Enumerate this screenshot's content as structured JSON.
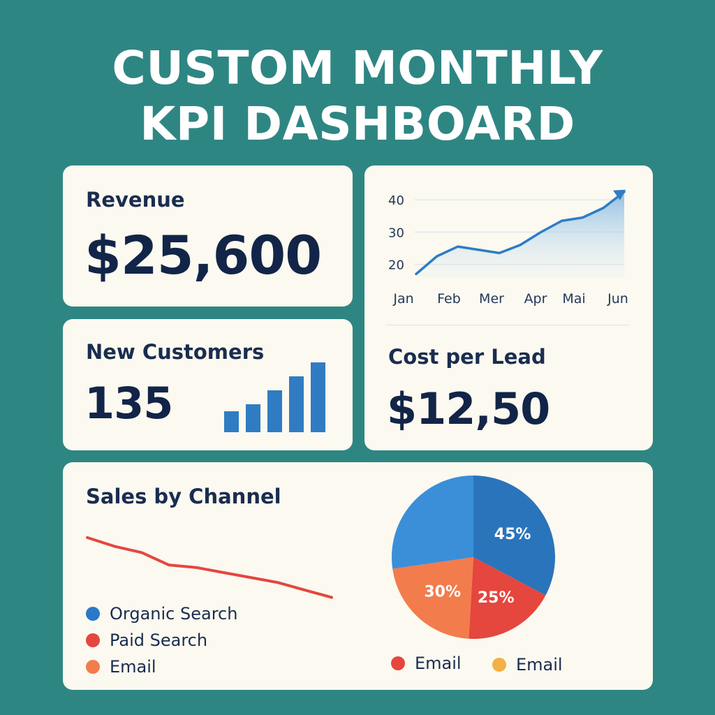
{
  "title_line1": "CUSTOM MONTHLY",
  "title_line2": "KPI DASHBOARD",
  "revenue": {
    "label": "Revenue",
    "value": "$25,600"
  },
  "new_customers": {
    "label": "New Customers",
    "value": "135"
  },
  "cost_per_lead": {
    "label": "Cost per Lead",
    "value": "$12,50"
  },
  "sales_by_channel": {
    "label": "Sales by Channel",
    "legend": [
      {
        "label": "Organic Search",
        "color": "#2a78c8"
      },
      {
        "label": "Paid Search",
        "color": "#e5463e"
      },
      {
        "label": "Email",
        "color": "#f27c4c"
      }
    ],
    "pie_legend": [
      {
        "label": "Email",
        "color": "#e5463e"
      },
      {
        "label": "Email",
        "color": "#f2b045"
      }
    ]
  },
  "colors": {
    "background": "#2e8683",
    "card": "#fbf9f0",
    "text_dark": "#122548",
    "blue": "#2f7cc3",
    "red": "#e5463e",
    "orange": "#f27c4c",
    "pie_light_blue": "#3a8fd8",
    "pie_dark_blue": "#2a74bc"
  },
  "chart_data": [
    {
      "type": "area",
      "categories": [
        "Jan",
        "Feb",
        "Mer",
        "Apr",
        "Mai",
        "Jun"
      ],
      "x_tick_labels": [
        "Jan",
        "Feb",
        "Mer",
        "Apr",
        "Mai",
        "Jun"
      ],
      "y_ticks": [
        20,
        30,
        40
      ],
      "ylim": [
        16,
        42
      ],
      "x": [
        0,
        0.5,
        1,
        1.5,
        2,
        2.5,
        3,
        3.5,
        4,
        4.5,
        5
      ],
      "values": [
        17,
        22.5,
        25.5,
        24.5,
        23.5,
        26,
        30,
        33.5,
        34.5,
        37.5,
        42.5
      ],
      "grid": true,
      "end_arrow": true
    },
    {
      "type": "bar",
      "values": [
        6,
        8,
        12,
        16,
        20
      ],
      "ylim": [
        0,
        20
      ]
    },
    {
      "type": "line",
      "values": [
        100,
        93,
        88,
        78,
        76,
        72,
        68,
        64,
        58,
        52
      ],
      "ylim": [
        40,
        110
      ],
      "color": "#e5463e"
    },
    {
      "type": "pie",
      "slices": [
        {
          "label": "45%",
          "value": 45,
          "color": "#2a74bc"
        },
        {
          "label": "25%",
          "value": 25,
          "color": "#e5463e"
        },
        {
          "label": "30%",
          "value": 30,
          "color": "#f27c4c"
        },
        {
          "label": "",
          "value": 37.5,
          "color": "#3a8fd8"
        }
      ]
    }
  ]
}
